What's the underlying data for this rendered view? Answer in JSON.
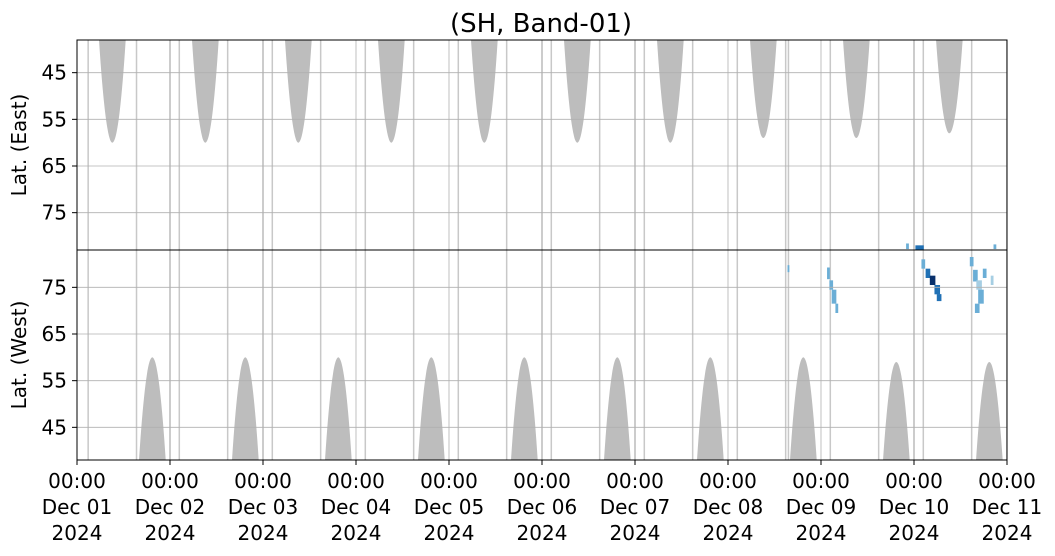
{
  "chart_data": {
    "type": "heatmap",
    "title": "(SH, Band-01)",
    "x_ticks": [
      {
        "line1": "00:00",
        "line2": "Dec 01",
        "line3": "2024"
      },
      {
        "line1": "00:00",
        "line2": "Dec 02",
        "line3": "2024"
      },
      {
        "line1": "00:00",
        "line2": "Dec 03",
        "line3": "2024"
      },
      {
        "line1": "00:00",
        "line2": "Dec 04",
        "line3": "2024"
      },
      {
        "line1": "00:00",
        "line2": "Dec 05",
        "line3": "2024"
      },
      {
        "line1": "00:00",
        "line2": "Dec 06",
        "line3": "2024"
      },
      {
        "line1": "00:00",
        "line2": "Dec 07",
        "line3": "2024"
      },
      {
        "line1": "00:00",
        "line2": "Dec 08",
        "line3": "2024"
      },
      {
        "line1": "00:00",
        "line2": "Dec 09",
        "line3": "2024"
      },
      {
        "line1": "00:00",
        "line2": "Dec 10",
        "line3": "2024"
      },
      {
        "line1": "00:00",
        "line2": "Dec 11",
        "line3": "2024"
      }
    ],
    "xlim_days": [
      0,
      10
    ],
    "grid": true,
    "mask_color": "#bdbdbd",
    "data_colors": [
      "#a6cee3",
      "#6baed6",
      "#2171b5",
      "#08306b"
    ],
    "panels": [
      {
        "ylabel": "Lat. (East)",
        "ylim": [
          38,
          83
        ],
        "inverted": true,
        "yticks": [
          45,
          55,
          65,
          75
        ],
        "masks": [
          {
            "center_day": 0.38,
            "half_width_day": 0.15,
            "min_lat": 60
          },
          {
            "center_day": 1.38,
            "half_width_day": 0.15,
            "min_lat": 60
          },
          {
            "center_day": 2.38,
            "half_width_day": 0.15,
            "min_lat": 60
          },
          {
            "center_day": 3.38,
            "half_width_day": 0.15,
            "min_lat": 60
          },
          {
            "center_day": 4.38,
            "half_width_day": 0.15,
            "min_lat": 60
          },
          {
            "center_day": 5.38,
            "half_width_day": 0.15,
            "min_lat": 60
          },
          {
            "center_day": 6.38,
            "half_width_day": 0.15,
            "min_lat": 60
          },
          {
            "center_day": 7.38,
            "half_width_day": 0.15,
            "min_lat": 59
          },
          {
            "center_day": 8.38,
            "half_width_day": 0.15,
            "min_lat": 59
          },
          {
            "center_day": 9.38,
            "half_width_day": 0.15,
            "min_lat": 58
          }
        ],
        "blobs": [
          {
            "day": 8.93,
            "lat": 82.2,
            "w": 0.03,
            "h": 1.2,
            "c": 1
          },
          {
            "day": 9.06,
            "lat": 82.5,
            "w": 0.09,
            "h": 1.0,
            "c": 2
          },
          {
            "day": 9.87,
            "lat": 82.3,
            "w": 0.03,
            "h": 1.0,
            "c": 1
          }
        ]
      },
      {
        "ylabel": "Lat. (West)",
        "ylim": [
          38,
          83
        ],
        "inverted": false,
        "yticks": [
          45,
          55,
          65,
          75
        ],
        "masks": [
          {
            "center_day": 0.81,
            "half_width_day": 0.15,
            "min_lat": 60
          },
          {
            "center_day": 1.81,
            "half_width_day": 0.15,
            "min_lat": 60
          },
          {
            "center_day": 2.81,
            "half_width_day": 0.15,
            "min_lat": 60
          },
          {
            "center_day": 3.81,
            "half_width_day": 0.15,
            "min_lat": 60
          },
          {
            "center_day": 4.81,
            "half_width_day": 0.15,
            "min_lat": 60
          },
          {
            "center_day": 5.81,
            "half_width_day": 0.15,
            "min_lat": 60
          },
          {
            "center_day": 6.81,
            "half_width_day": 0.15,
            "min_lat": 60
          },
          {
            "center_day": 7.81,
            "half_width_day": 0.15,
            "min_lat": 60
          },
          {
            "center_day": 8.81,
            "half_width_day": 0.15,
            "min_lat": 59
          },
          {
            "center_day": 9.81,
            "half_width_day": 0.15,
            "min_lat": 59
          }
        ],
        "blobs": [
          {
            "day": 7.65,
            "lat": 79.0,
            "w": 0.02,
            "h": 1.5,
            "c": 1
          },
          {
            "day": 8.08,
            "lat": 78.0,
            "w": 0.03,
            "h": 2.5,
            "c": 1
          },
          {
            "day": 8.11,
            "lat": 75.5,
            "w": 0.04,
            "h": 2.0,
            "c": 1
          },
          {
            "day": 8.14,
            "lat": 73.0,
            "w": 0.05,
            "h": 3.0,
            "c": 1
          },
          {
            "day": 8.17,
            "lat": 70.5,
            "w": 0.03,
            "h": 2.0,
            "c": 1
          },
          {
            "day": 9.1,
            "lat": 80.0,
            "w": 0.04,
            "h": 2.0,
            "c": 1
          },
          {
            "day": 9.15,
            "lat": 78.0,
            "w": 0.05,
            "h": 2.0,
            "c": 2
          },
          {
            "day": 9.2,
            "lat": 76.5,
            "w": 0.06,
            "h": 2.0,
            "c": 3
          },
          {
            "day": 9.25,
            "lat": 74.5,
            "w": 0.06,
            "h": 2.0,
            "c": 2
          },
          {
            "day": 9.27,
            "lat": 72.8,
            "w": 0.05,
            "h": 1.5,
            "c": 2
          },
          {
            "day": 9.62,
            "lat": 80.5,
            "w": 0.04,
            "h": 2.0,
            "c": 1
          },
          {
            "day": 9.66,
            "lat": 77.5,
            "w": 0.05,
            "h": 2.5,
            "c": 1
          },
          {
            "day": 9.7,
            "lat": 75.5,
            "w": 0.06,
            "h": 2.0,
            "c": 0
          },
          {
            "day": 9.72,
            "lat": 73.0,
            "w": 0.06,
            "h": 3.0,
            "c": 1
          },
          {
            "day": 9.68,
            "lat": 70.5,
            "w": 0.05,
            "h": 2.0,
            "c": 1
          },
          {
            "day": 9.76,
            "lat": 78.0,
            "w": 0.04,
            "h": 2.0,
            "c": 1
          },
          {
            "day": 9.84,
            "lat": 76.5,
            "w": 0.03,
            "h": 2.0,
            "c": 0
          }
        ]
      }
    ],
    "vertical_gaps_days": [
      0.12,
      0.64,
      1.0,
      1.1,
      1.62,
      2.0,
      2.1,
      2.62,
      3.1,
      3.62,
      4.1,
      4.62,
      5.0,
      5.1,
      5.62,
      6.0,
      6.1,
      6.62,
      7.1,
      7.62,
      7.65,
      8.1,
      8.62,
      9.0,
      9.1,
      9.62,
      10.0
    ]
  }
}
